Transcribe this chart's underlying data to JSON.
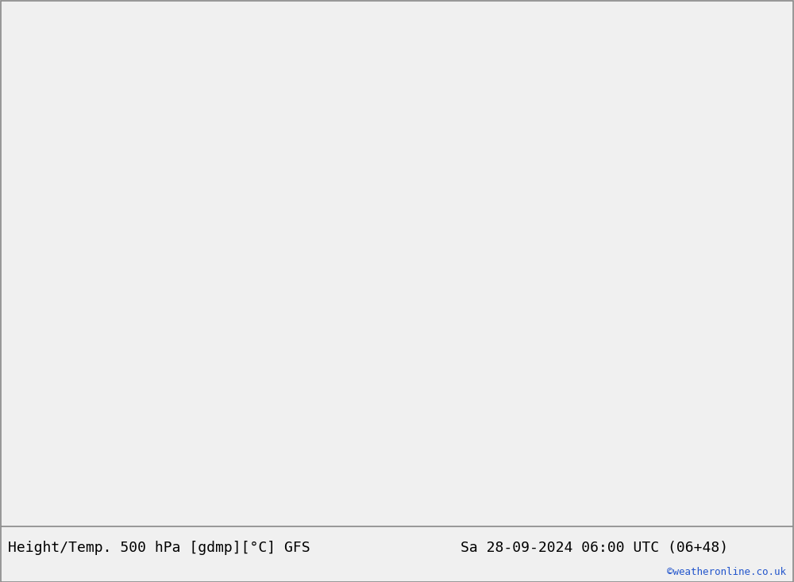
{
  "title_left": "Height/Temp. 500 hPa [gdmp][°C] GFS",
  "title_right": "Sa 28-09-2024 06:00 UTC (06+48)",
  "credit": "©weatheronline.co.uk",
  "ocean_color": "#d2d2d2",
  "land_color_warm": "#c8e8a0",
  "land_color_gray": "#c0c0c0",
  "coast_color": "#808080",
  "fig_width": 10.0,
  "fig_height": 7.33,
  "title_fontsize": 13,
  "credit_fontsize": 9,
  "map_extent": [
    -30,
    45,
    27,
    72
  ],
  "dpi": 100
}
